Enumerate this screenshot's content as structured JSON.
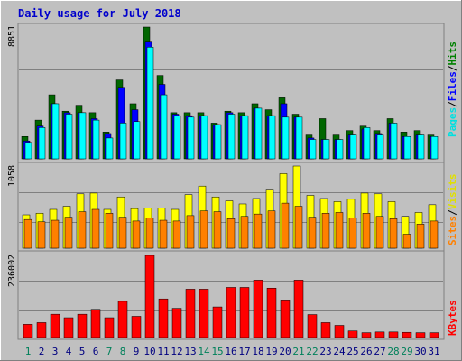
{
  "title": "Daily usage for July 2018",
  "colors": {
    "background": "#c0c0c0",
    "title": "#0000cc",
    "hits": "#006600",
    "files": "#0000ff",
    "pages": "#00ffff",
    "visits": "#ffff00",
    "sites": "#ff8000",
    "kbytes": "#ff0000",
    "weekend_day_label": "#00805a",
    "weekday_label": "#000080"
  },
  "chart_data": [
    {
      "type": "bar",
      "panel": "hits-files-pages",
      "categories": [
        "1",
        "2",
        "3",
        "4",
        "5",
        "6",
        "7",
        "8",
        "9",
        "10",
        "11",
        "12",
        "13",
        "14",
        "15",
        "16",
        "17",
        "18",
        "19",
        "20",
        "21",
        "22",
        "23",
        "24",
        "25",
        "26",
        "27",
        "28",
        "29",
        "30",
        "31"
      ],
      "weekend_days": [
        "1",
        "7",
        "8",
        "14",
        "15",
        "21",
        "22",
        "28",
        "29"
      ],
      "y_max_label": "8851",
      "ylim": [
        0,
        8851
      ],
      "right_axis_labels": [
        "Pages",
        "Files",
        "Hits"
      ],
      "series": [
        {
          "name": "Hits",
          "values": [
            1500,
            2600,
            4300,
            3200,
            3600,
            3100,
            1800,
            5300,
            3700,
            8851,
            5600,
            3100,
            3100,
            3100,
            2400,
            3200,
            3100,
            3700,
            3300,
            4100,
            3000,
            1600,
            2700,
            1600,
            1900,
            2200,
            1900,
            2700,
            1800,
            1900,
            1600
          ]
        },
        {
          "name": "Files",
          "values": [
            1200,
            2200,
            3700,
            3100,
            3100,
            2700,
            1700,
            4800,
            3300,
            7900,
            5000,
            3000,
            2900,
            2900,
            2300,
            3100,
            2900,
            3400,
            2900,
            3700,
            2800,
            1400,
            1300,
            1300,
            1600,
            2000,
            1700,
            2400,
            1500,
            1600,
            1500
          ]
        },
        {
          "name": "Pages",
          "values": [
            1100,
            2100,
            3700,
            3000,
            3100,
            2600,
            1400,
            2400,
            2500,
            7500,
            4300,
            2900,
            2800,
            2900,
            2300,
            3000,
            2900,
            3400,
            2900,
            2800,
            2800,
            1300,
            1300,
            1300,
            1600,
            2100,
            1600,
            2400,
            1500,
            1600,
            1500
          ]
        }
      ]
    },
    {
      "type": "bar",
      "panel": "visits-sites",
      "categories": [
        "1",
        "2",
        "3",
        "4",
        "5",
        "6",
        "7",
        "8",
        "9",
        "10",
        "11",
        "12",
        "13",
        "14",
        "15",
        "16",
        "17",
        "18",
        "19",
        "20",
        "21",
        "22",
        "23",
        "24",
        "25",
        "26",
        "27",
        "28",
        "29",
        "30",
        "31"
      ],
      "y_max_label": "1058",
      "ylim": [
        0,
        1058
      ],
      "right_axis_labels": [
        "Sites",
        "Visits"
      ],
      "series": [
        {
          "name": "Visits",
          "values": [
            430,
            450,
            500,
            540,
            700,
            710,
            500,
            660,
            510,
            520,
            520,
            500,
            690,
            800,
            660,
            610,
            570,
            640,
            760,
            960,
            1058,
            680,
            640,
            600,
            630,
            710,
            700,
            600,
            410,
            460,
            560
          ]
        },
        {
          "name": "Sites",
          "values": [
            370,
            340,
            360,
            400,
            470,
            500,
            450,
            400,
            350,
            390,
            360,
            350,
            420,
            480,
            470,
            380,
            410,
            440,
            480,
            580,
            540,
            400,
            450,
            460,
            390,
            450,
            410,
            380,
            180,
            310,
            350
          ]
        }
      ]
    },
    {
      "type": "bar",
      "panel": "kbytes",
      "categories": [
        "1",
        "2",
        "3",
        "4",
        "5",
        "6",
        "7",
        "8",
        "9",
        "10",
        "11",
        "12",
        "13",
        "14",
        "15",
        "16",
        "17",
        "18",
        "19",
        "20",
        "21",
        "22",
        "23",
        "24",
        "25",
        "26",
        "27",
        "28",
        "29",
        "30",
        "31"
      ],
      "y_max_label": "236002",
      "ylim": [
        0,
        236002
      ],
      "right_axis_labels": [
        "KBytes"
      ],
      "series": [
        {
          "name": "KBytes",
          "values": [
            38000,
            43000,
            67000,
            57000,
            67000,
            81000,
            57000,
            104000,
            61000,
            236002,
            111000,
            84000,
            139000,
            139000,
            88000,
            144000,
            144000,
            165000,
            142000,
            108000,
            165000,
            66000,
            43000,
            35000,
            19000,
            14000,
            16000,
            16000,
            15000,
            14000,
            14000
          ]
        }
      ]
    }
  ]
}
